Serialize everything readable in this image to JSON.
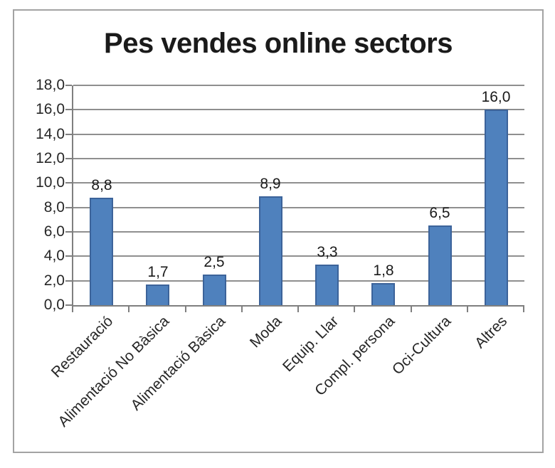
{
  "chart_data": {
    "type": "bar",
    "title": "Pes vendes online sectors",
    "categories": [
      "Restauració",
      "Alimentació No Bàsica",
      "Alimentació Bàsica",
      "Moda",
      "Equip. Llar",
      "Compl. persona",
      "Oci-Cultura",
      "Altres"
    ],
    "values": [
      8.8,
      1.7,
      2.5,
      8.9,
      3.3,
      1.8,
      6.5,
      16.0
    ],
    "value_labels": [
      "8,8",
      "1,7",
      "2,5",
      "8,9",
      "3,3",
      "1,8",
      "6,5",
      "16,0"
    ],
    "xlabel": "",
    "ylabel": "",
    "ylim": [
      0,
      18
    ],
    "yticks": [
      0,
      2,
      4,
      6,
      8,
      10,
      12,
      14,
      16,
      18
    ],
    "ytick_labels": [
      "0,0",
      "2,0",
      "4,0",
      "6,0",
      "8,0",
      "10,0",
      "12,0",
      "14,0",
      "16,0",
      "18,0"
    ],
    "grid": true,
    "legend": false,
    "colors": {
      "bar_fill": "#4F81BD",
      "bar_border": "#3C639A",
      "gridline": "#8F8F8F",
      "axis": "#7F7F7F",
      "text": "#262626",
      "title_text": "#1A1A1A",
      "frame_border": "#A3A3A3",
      "background": "#FFFFFF"
    }
  }
}
